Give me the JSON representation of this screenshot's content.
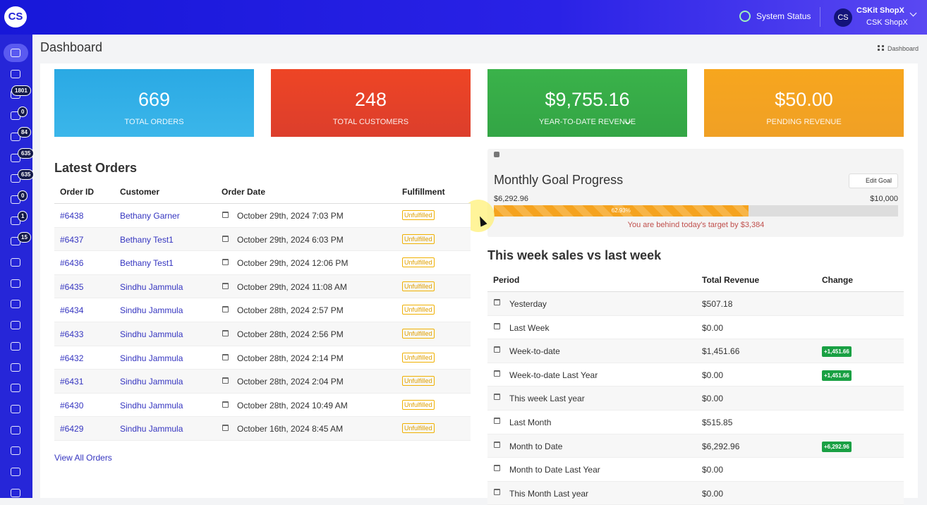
{
  "header": {
    "logo": "CS",
    "system_status": "System Status",
    "avatar": "CS",
    "account_name": "CSKit ShopX",
    "store_name": "CSK ShopX"
  },
  "sidebar": {
    "badges": [
      1801,
      0,
      84,
      635,
      635,
      0,
      1,
      15
    ]
  },
  "page": {
    "title": "Dashboard",
    "breadcrumb": "Dashboard"
  },
  "stats": [
    {
      "value": "669",
      "label": "TOTAL ORDERS"
    },
    {
      "value": "248",
      "label": "TOTAL CUSTOMERS"
    },
    {
      "value": "$9,755.16",
      "label": "YEAR-TO-DATE REVENUE"
    },
    {
      "value": "$50.00",
      "label": "PENDING REVENUE"
    }
  ],
  "latest_orders": {
    "title": "Latest Orders",
    "columns": [
      "Order ID",
      "Customer",
      "Order Date",
      "Fulfillment"
    ],
    "rows": [
      [
        "#6438",
        "Bethany Garner",
        "October 29th, 2024 7:03 PM",
        "Unfulfilled"
      ],
      [
        "#6437",
        "Bethany Test1",
        "October 29th, 2024 6:03 PM",
        "Unfulfilled"
      ],
      [
        "#6436",
        "Bethany Test1",
        "October 29th, 2024 12:06 PM",
        "Unfulfilled"
      ],
      [
        "#6435",
        "Sindhu Jammula",
        "October 29th, 2024 11:08 AM",
        "Unfulfilled"
      ],
      [
        "#6434",
        "Sindhu Jammula",
        "October 28th, 2024 2:57 PM",
        "Unfulfilled"
      ],
      [
        "#6433",
        "Sindhu Jammula",
        "October 28th, 2024 2:56 PM",
        "Unfulfilled"
      ],
      [
        "#6432",
        "Sindhu Jammula",
        "October 28th, 2024 2:14 PM",
        "Unfulfilled"
      ],
      [
        "#6431",
        "Sindhu Jammula",
        "October 28th, 2024 2:04 PM",
        "Unfulfilled"
      ],
      [
        "#6430",
        "Sindhu Jammula",
        "October 28th, 2024 10:49 AM",
        "Unfulfilled"
      ],
      [
        "#6429",
        "Sindhu Jammula",
        "October 16th, 2024 8:45 AM",
        "Unfulfilled"
      ]
    ],
    "link": "View All Orders"
  },
  "monthly_goal": {
    "title": "Monthly Goal Progress",
    "edit_button": "Edit Goal",
    "current": "$6,292.96",
    "target": "$10,000",
    "progress": {
      "value": 62.93,
      "label": "62.93%"
    },
    "message": "You are behind today's target by $3,384"
  },
  "weekly_sales": {
    "title": "This week sales vs last week",
    "columns": [
      "Period",
      "Total Revenue",
      "Change"
    ],
    "rows": [
      [
        "Yesterday",
        "$507.18",
        null
      ],
      [
        "Last Week",
        "$0.00",
        null
      ],
      [
        "Week-to-date",
        "$1,451.66",
        "+1,451.66"
      ],
      [
        "Week-to-date Last Year",
        "$0.00",
        "+1,451.66"
      ],
      [
        "This week Last year",
        "$0.00",
        null
      ],
      [
        "Last Month",
        "$515.85",
        null
      ],
      [
        "Month to Date",
        "$6,292.96",
        "+6,292.96"
      ],
      [
        "Month to Date Last Year",
        "$0.00",
        null
      ],
      [
        "This Month Last year",
        "$0.00",
        null
      ]
    ]
  }
}
